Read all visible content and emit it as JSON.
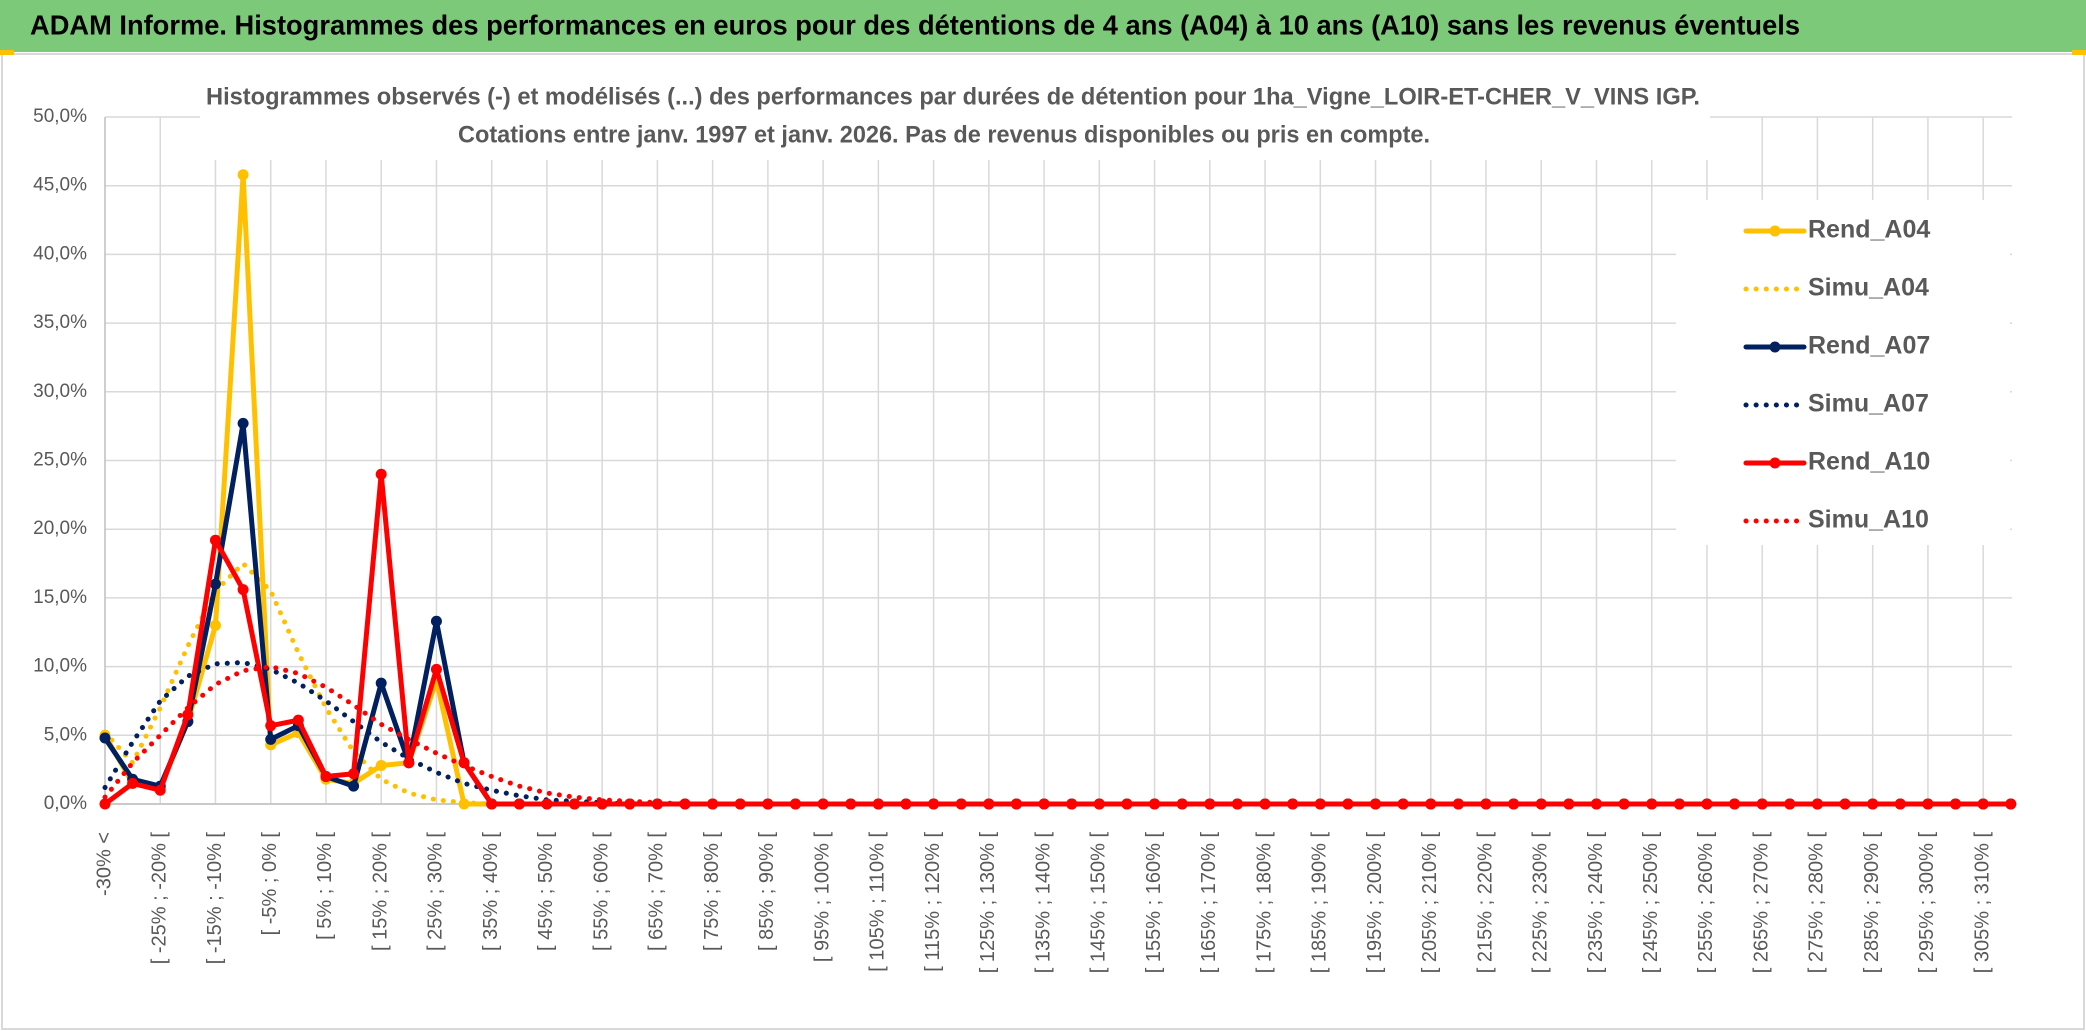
{
  "header": {
    "title": "ADAM Informe. Histogrammes des performances en euros pour des détentions de 4 ans (A04) à 10 ans (A10) sans les revenus éventuels"
  },
  "chart_data": {
    "type": "line",
    "title": "Histogrammes observés (-) et modélisés (...) des performances par durées de détention pour 1ha_Vigne_LOIR-ET-CHER_V_VINS IGP.",
    "subtitle": "Cotations entre janv. 1997 et janv. 2026. Pas de revenus disponibles ou pris en compte.",
    "categories": [
      "-30% <",
      null,
      "[ -25% ; -20% [",
      null,
      "[ -15% ; -10% [",
      null,
      "[ -5% ; 0% [",
      null,
      "[ 5% ; 10% [",
      null,
      "[ 15% ; 20% [",
      null,
      "[ 25% ; 30% [",
      null,
      "[ 35% ; 40% [",
      null,
      "[ 45% ; 50% [",
      null,
      "[ 55% ; 60% [",
      null,
      "[ 65% ; 70% [",
      null,
      "[ 75% ; 80% [",
      null,
      "[ 85% ; 90% [",
      null,
      "[ 95% ; 100% [",
      null,
      "[ 105% ; 110% [",
      null,
      "[ 115% ; 120% [",
      null,
      "[ 125% ; 130% [",
      null,
      "[ 135% ; 140% [",
      null,
      "[ 145% ; 150% [",
      null,
      "[ 155% ; 160% [",
      null,
      "[ 165% ; 170% [",
      null,
      "[ 175% ; 180% [",
      null,
      "[ 185% ; 190% [",
      null,
      "[ 195% ; 200% [",
      null,
      "[ 205% ; 210% [",
      null,
      "[ 215% ; 220% [",
      null,
      "[ 225% ; 230% [",
      null,
      "[ 235% ; 240% [",
      null,
      "[ 245% ; 250% [",
      null,
      "[ 255% ; 260% [",
      null,
      "[ 265% ; 270% [",
      null,
      "[ 275% ; 280% [",
      null,
      "[ 285% ; 290% [",
      null,
      "[ 295% ; 300% [",
      null,
      "[ 305% ; 310% [",
      null
    ],
    "series": [
      {
        "name": "Rend_A04",
        "color": "#ffc000",
        "dash": "solid",
        "markers": true,
        "values": [
          5.0,
          1.5,
          1.2,
          6.0,
          13.0,
          45.8,
          4.3,
          5.2,
          1.8,
          1.5,
          2.8,
          3.0,
          9.0,
          0,
          0,
          0,
          0,
          0,
          0,
          0,
          0,
          0,
          0,
          0,
          0,
          0,
          0,
          0,
          0,
          0,
          0,
          0,
          0,
          0,
          0,
          0,
          0,
          0,
          0,
          0,
          0,
          0,
          0,
          0,
          0,
          0,
          0,
          0,
          0,
          0,
          0,
          0,
          0,
          0,
          0,
          0,
          0,
          0,
          0,
          0,
          0,
          0,
          0,
          0,
          0,
          0,
          0,
          0,
          0,
          0
        ]
      },
      {
        "name": "Simu_A04",
        "color": "#ffc000",
        "dash": "dotted",
        "markers": false,
        "values": [
          5.2,
          3.0,
          7.0,
          11.5,
          15.5,
          17.5,
          15.5,
          11.0,
          7.0,
          3.8,
          1.8,
          0.8,
          0.3,
          0.1,
          0,
          0,
          0,
          0,
          0,
          0,
          0,
          0,
          0,
          0,
          0,
          0,
          0,
          0,
          0,
          0,
          0,
          0,
          0,
          0,
          0,
          0,
          0,
          0,
          0,
          0,
          0,
          0,
          0,
          0,
          0,
          0,
          0,
          0,
          0,
          0,
          0,
          0,
          0,
          0,
          0,
          0,
          0,
          0,
          0,
          0,
          0,
          0,
          0,
          0,
          0,
          0,
          0,
          0,
          0,
          0
        ]
      },
      {
        "name": "Rend_A07",
        "color": "#002060",
        "dash": "solid",
        "markers": true,
        "values": [
          4.8,
          1.8,
          1.3,
          6.0,
          16.0,
          27.7,
          4.7,
          5.7,
          2.0,
          1.3,
          8.8,
          3.0,
          13.3,
          3.0,
          0,
          0,
          0,
          0,
          0,
          0,
          0,
          0,
          0,
          0,
          0,
          0,
          0,
          0,
          0,
          0,
          0,
          0,
          0,
          0,
          0,
          0,
          0,
          0,
          0,
          0,
          0,
          0,
          0,
          0,
          0,
          0,
          0,
          0,
          0,
          0,
          0,
          0,
          0,
          0,
          0,
          0,
          0,
          0,
          0,
          0,
          0,
          0,
          0,
          0,
          0,
          0,
          0,
          0,
          0,
          0
        ]
      },
      {
        "name": "Simu_A07",
        "color": "#002060",
        "dash": "dotted",
        "markers": false,
        "values": [
          1.2,
          4.5,
          7.5,
          9.3,
          10.2,
          10.3,
          9.8,
          8.8,
          7.5,
          6.0,
          4.5,
          3.3,
          2.3,
          1.5,
          1.0,
          0.6,
          0.3,
          0.2,
          0.1,
          0,
          0,
          0,
          0,
          0,
          0,
          0,
          0,
          0,
          0,
          0,
          0,
          0,
          0,
          0,
          0,
          0,
          0,
          0,
          0,
          0,
          0,
          0,
          0,
          0,
          0,
          0,
          0,
          0,
          0,
          0,
          0,
          0,
          0,
          0,
          0,
          0,
          0,
          0,
          0,
          0,
          0,
          0,
          0,
          0,
          0,
          0,
          0,
          0,
          0,
          0
        ]
      },
      {
        "name": "Rend_A10",
        "color": "#ff0000",
        "dash": "solid",
        "markers": true,
        "values": [
          0,
          1.5,
          1.0,
          6.5,
          19.2,
          15.6,
          5.7,
          6.1,
          2.0,
          2.2,
          24.0,
          3.0,
          9.8,
          3.0,
          0,
          0,
          0,
          0,
          0,
          0,
          0,
          0,
          0,
          0,
          0,
          0,
          0,
          0,
          0,
          0,
          0,
          0,
          0,
          0,
          0,
          0,
          0,
          0,
          0,
          0,
          0,
          0,
          0,
          0,
          0,
          0,
          0,
          0,
          0,
          0,
          0,
          0,
          0,
          0,
          0,
          0,
          0,
          0,
          0,
          0,
          0,
          0,
          0,
          0,
          0,
          0,
          0,
          0,
          0,
          0
        ]
      },
      {
        "name": "Simu_A10",
        "color": "#ff0000",
        "dash": "dotted",
        "markers": false,
        "values": [
          0.5,
          3.0,
          5.0,
          7.0,
          8.7,
          9.7,
          10.0,
          9.5,
          8.5,
          7.2,
          5.8,
          4.7,
          3.7,
          2.8,
          2.0,
          1.3,
          0.8,
          0.5,
          0.3,
          0.2,
          0.1,
          0,
          0,
          0,
          0,
          0,
          0,
          0,
          0,
          0,
          0,
          0,
          0,
          0,
          0,
          0,
          0,
          0,
          0,
          0,
          0,
          0,
          0,
          0,
          0,
          0,
          0,
          0,
          0,
          0,
          0,
          0,
          0,
          0,
          0,
          0,
          0,
          0,
          0,
          0,
          0,
          0,
          0,
          0,
          0,
          0,
          0,
          0,
          0,
          0
        ]
      }
    ],
    "ylim": [
      0,
      50
    ],
    "yticks": [
      {
        "value": 0,
        "label": "0,0%"
      },
      {
        "value": 5,
        "label": "5,0%"
      },
      {
        "value": 10,
        "label": "10,0%"
      },
      {
        "value": 15,
        "label": "15,0%"
      },
      {
        "value": 20,
        "label": "20,0%"
      },
      {
        "value": 25,
        "label": "25,0%"
      },
      {
        "value": 30,
        "label": "30,0%"
      },
      {
        "value": 35,
        "label": "35,0%"
      },
      {
        "value": 40,
        "label": "40,0%"
      },
      {
        "value": 45,
        "label": "45,0%"
      },
      {
        "value": 50,
        "label": "50,0%"
      }
    ],
    "grid": true,
    "legend": "right"
  }
}
